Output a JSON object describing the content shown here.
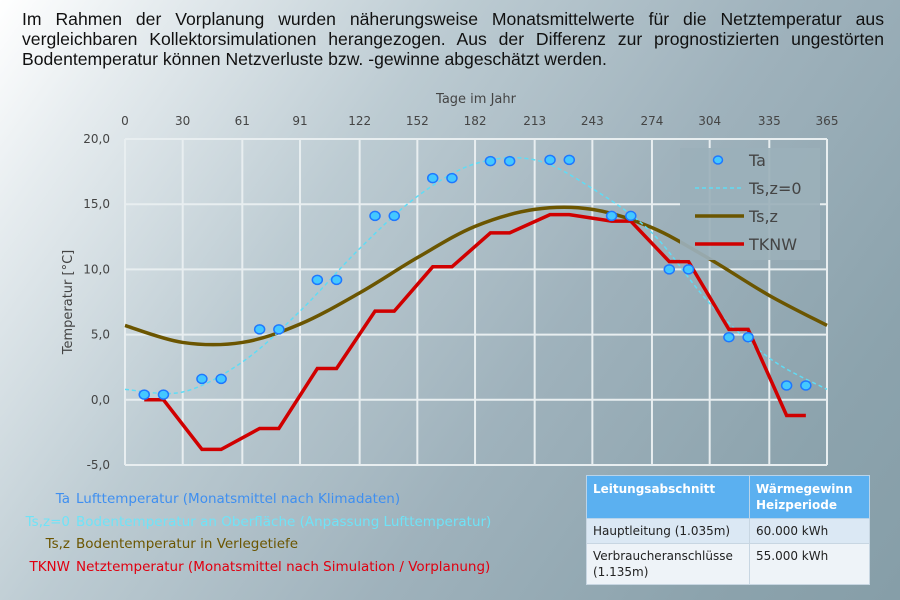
{
  "intro_text": "Im Rahmen der Vorplanung wurden näherungsweise Monatsmittelwerte für die Netztemperatur aus vergleichbaren Kollektorsimulationen herangezogen. Aus der Differenz zur prognostizierten ungestörten Bodentemperatur können Netzverluste bzw. -gewinne abgeschätzt werden.",
  "chart_data": {
    "type": "line",
    "title": "",
    "xlabel": "Tage im Jahr",
    "ylabel": "Temperatur [°C]",
    "xlim": [
      0,
      365
    ],
    "ylim": [
      -5,
      20
    ],
    "x_ticks": [
      0,
      30,
      61,
      91,
      122,
      152,
      182,
      213,
      243,
      274,
      304,
      335,
      365
    ],
    "y_ticks": [
      "-5,0",
      "0,0",
      "5,0",
      "10,0",
      "15,0",
      "20,0"
    ],
    "y_tick_values": [
      -5,
      0,
      5,
      10,
      15,
      20
    ],
    "x_axis_position": "top",
    "grid": true,
    "legend_position": "top-right",
    "series": [
      {
        "name": "Ta",
        "kind": "scatter",
        "color": "#44c8ff",
        "x": [
          10,
          20,
          40,
          50,
          70,
          80,
          100,
          110,
          130,
          140,
          160,
          170,
          190,
          200,
          221,
          231,
          253,
          263,
          283,
          293,
          314,
          324,
          344,
          354
        ],
        "y": [
          0.4,
          0.4,
          1.6,
          1.6,
          5.4,
          5.4,
          9.2,
          9.2,
          14.1,
          14.1,
          17.0,
          17.0,
          18.3,
          18.3,
          18.4,
          18.4,
          14.1,
          14.1,
          10.0,
          10.0,
          4.8,
          4.8,
          1.1,
          1.1
        ]
      },
      {
        "name": "Ts,z=0",
        "kind": "dashed",
        "color": "#5fdcf5",
        "x": [
          0,
          30,
          61,
          91,
          122,
          152,
          182,
          213,
          243,
          274,
          304,
          335,
          365
        ],
        "y": [
          0.8,
          0.6,
          2.9,
          6.8,
          11.6,
          15.6,
          18.1,
          18.4,
          16.2,
          12.8,
          7.4,
          3.2,
          0.8
        ]
      },
      {
        "name": "Ts,z",
        "kind": "line",
        "color": "#6b5500",
        "x": [
          0,
          30,
          61,
          91,
          122,
          152,
          182,
          213,
          243,
          274,
          304,
          335,
          365
        ],
        "y": [
          5.7,
          4.4,
          4.4,
          5.8,
          8.2,
          10.9,
          13.3,
          14.6,
          14.6,
          13.2,
          10.8,
          8.0,
          5.7
        ]
      },
      {
        "name": "TKNW",
        "kind": "line",
        "color": "#d00000",
        "x": [
          10,
          20,
          40,
          50,
          70,
          80,
          100,
          110,
          130,
          140,
          160,
          170,
          190,
          200,
          221,
          231,
          253,
          263,
          283,
          293,
          314,
          324,
          344,
          354
        ],
        "y": [
          0.0,
          0.0,
          -3.8,
          -3.8,
          -2.2,
          -2.2,
          2.4,
          2.4,
          6.8,
          6.8,
          10.2,
          10.2,
          12.8,
          12.8,
          14.2,
          14.2,
          13.7,
          13.7,
          10.6,
          10.6,
          5.4,
          5.4,
          -1.2,
          -1.2
        ]
      }
    ]
  },
  "explanations": [
    {
      "key": "Ta",
      "text": "Lufttemperatur (Monatsmittel nach Klimadaten)",
      "color": "#3f8ff0"
    },
    {
      "key": "Ts,z=0",
      "text": "Bodentemperatur an Oberfläche (Anpassung Lufttemperatur)",
      "color": "#6fe3f7"
    },
    {
      "key": "Ts,z",
      "text": "Bodentemperatur in Verlegetiefe",
      "color": "#6b5500"
    },
    {
      "key": "TKNW",
      "text": "Netztemperatur (Monatsmittel nach Simulation / Vorplanung)",
      "color": "#e00010"
    }
  ],
  "table": {
    "headers": [
      "Leitungsabschnitt",
      "Wärmegewinn Heizperiode"
    ],
    "rows": [
      [
        "Hauptleitung (1.035m)",
        "60.000 kWh"
      ],
      [
        "Verbraucheranschlüsse (1.135m)",
        "55.000 kWh"
      ]
    ]
  }
}
